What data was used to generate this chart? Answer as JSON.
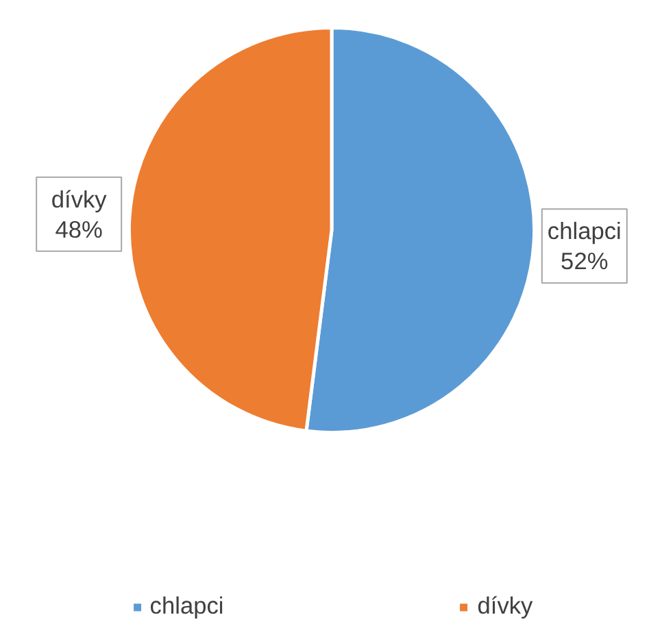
{
  "chart_data": {
    "type": "pie",
    "categories": [
      "chlapci",
      "dívky"
    ],
    "values": [
      52,
      48
    ],
    "colors": [
      "#5b9bd5",
      "#ed7d31"
    ],
    "value_labels": [
      "52%",
      "48%"
    ],
    "legend": "bottom"
  }
}
